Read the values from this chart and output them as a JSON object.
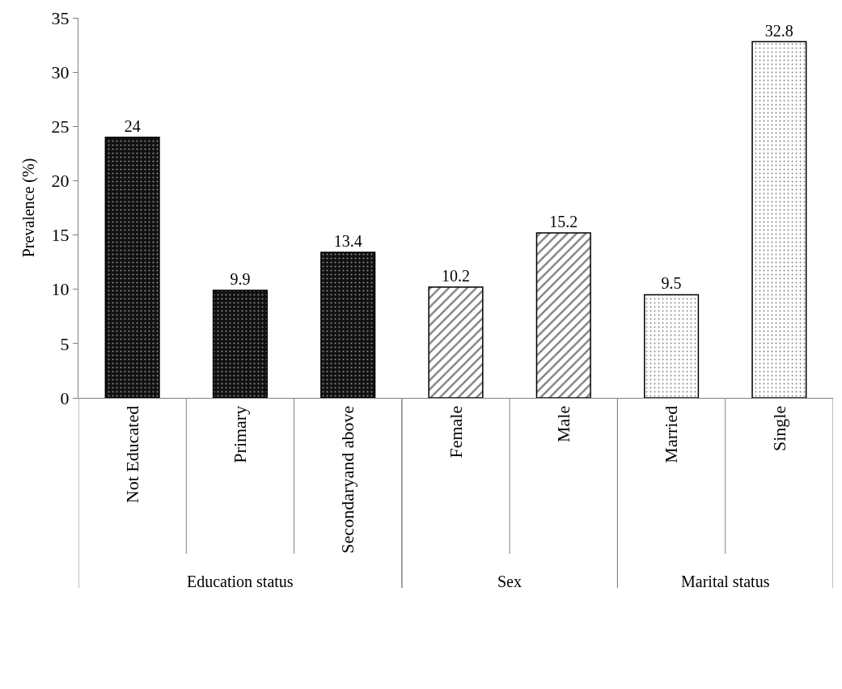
{
  "chart_data": {
    "type": "bar",
    "ylabel": "Prevalence (%)",
    "categories": [
      "Not Educated",
      "Primary",
      "Secondaryand above",
      "Female",
      "Male",
      "Married",
      "Single"
    ],
    "series": [
      {
        "color": "#000000",
        "values": [
          24,
          9.9,
          13.4,
          null,
          null,
          null,
          null
        ]
      },
      {
        "color": "#000000",
        "values": [
          null,
          null,
          null,
          10.2,
          15.2,
          null,
          null
        ]
      },
      {
        "color": "#000000",
        "values": [
          null,
          null,
          null,
          null,
          null,
          9.5,
          32.8
        ]
      }
    ],
    "annotations": [
      "Education status",
      "Sex",
      "Marital status"
    ],
    "ylim": [
      0,
      35
    ],
    "yticks": [
      0,
      5,
      10,
      15,
      20,
      25,
      30,
      35
    ],
    "data_labels": true,
    "legend": false
  }
}
